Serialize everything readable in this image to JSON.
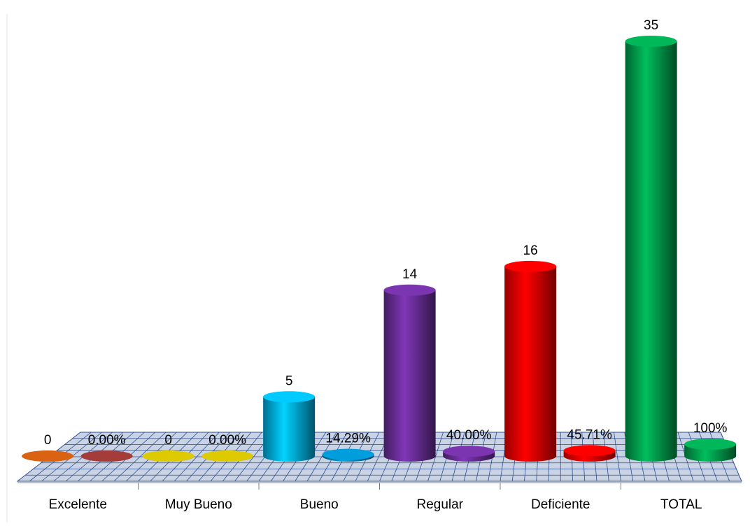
{
  "chart_data": {
    "type": "cylinder",
    "categories": [
      "Excelente",
      "Muy Bueno",
      "Bueno",
      "Regular",
      "Deficiente",
      "TOTAL"
    ],
    "series": [
      {
        "values": [
          0,
          0,
          5,
          14,
          16,
          35
        ],
        "colors": [
          "#c55a11",
          "#c9b800",
          "#00b8f0",
          "#7030a0",
          "#ff0000",
          "#00a651"
        ]
      },
      {
        "values": [
          0,
          0,
          14.29,
          40,
          45.71,
          100
        ],
        "value_labels": [
          "0.00%",
          "0.00%",
          "14.29%",
          "40.00%",
          "45.71%",
          "100%"
        ],
        "colors": [
          "#953735",
          "#c9b800",
          "#0090c8",
          "#7030a0",
          "#ff0000",
          "#00a651"
        ]
      }
    ]
  }
}
